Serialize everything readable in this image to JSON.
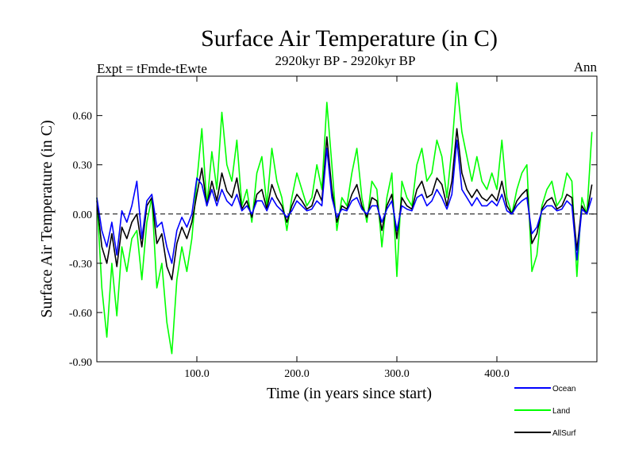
{
  "chart_data": {
    "type": "line",
    "title": "Surface Air Temperature (in C)",
    "subtitle": "2920kyr BP - 2920kyr BP",
    "left_label": "Expt = tFmde-tEwte",
    "right_label": "Ann",
    "xlabel": "Time (in years since start)",
    "ylabel": "Surface Air Temperature (in C)",
    "xlim": [
      0,
      500
    ],
    "ylim": [
      -0.9,
      0.84
    ],
    "x_ticks": [
      100,
      200,
      300,
      400
    ],
    "x_tick_labels": [
      "100.0",
      "200.0",
      "300.0",
      "400.0"
    ],
    "y_ticks": [
      -0.9,
      -0.6,
      -0.3,
      0.0,
      0.3,
      0.6
    ],
    "y_tick_labels": [
      "-0.90",
      "-0.60",
      "-0.30",
      "0.00",
      "0.30",
      "0.60"
    ],
    "zero_line": true,
    "x_step": 5,
    "series": [
      {
        "name": "Land",
        "color": "#00ff00",
        "values": [
          0.1,
          -0.45,
          -0.75,
          -0.3,
          -0.62,
          -0.2,
          -0.35,
          -0.15,
          -0.1,
          -0.4,
          -0.05,
          0.1,
          -0.45,
          -0.3,
          -0.66,
          -0.85,
          -0.4,
          -0.2,
          -0.35,
          -0.15,
          0.2,
          0.52,
          0.05,
          0.38,
          0.15,
          0.62,
          0.3,
          0.2,
          0.45,
          0.05,
          0.15,
          -0.05,
          0.25,
          0.35,
          0.05,
          0.4,
          0.2,
          0.1,
          -0.1,
          0.1,
          0.25,
          0.15,
          0.05,
          0.1,
          0.3,
          0.15,
          0.68,
          0.3,
          -0.1,
          0.1,
          0.05,
          0.25,
          0.4,
          0.1,
          -0.05,
          0.2,
          0.15,
          -0.2,
          0.1,
          0.25,
          -0.38,
          0.2,
          0.1,
          0.05,
          0.3,
          0.4,
          0.2,
          0.25,
          0.45,
          0.35,
          0.1,
          0.4,
          0.8,
          0.5,
          0.35,
          0.2,
          0.35,
          0.2,
          0.15,
          0.25,
          0.15,
          0.45,
          0.1,
          0.0,
          0.15,
          0.25,
          0.3,
          -0.35,
          -0.25,
          0.05,
          0.15,
          0.2,
          0.05,
          0.1,
          0.25,
          0.2,
          -0.38,
          0.1,
          0.0,
          0.5
        ]
      },
      {
        "name": "AllSurf",
        "color": "#000000",
        "values": [
          0.08,
          -0.2,
          -0.3,
          -0.12,
          -0.32,
          -0.08,
          -0.15,
          -0.05,
          0.0,
          -0.2,
          0.05,
          0.1,
          -0.18,
          -0.12,
          -0.32,
          -0.4,
          -0.18,
          -0.08,
          -0.15,
          -0.05,
          0.12,
          0.28,
          0.05,
          0.2,
          0.08,
          0.25,
          0.14,
          0.1,
          0.22,
          0.03,
          0.08,
          -0.02,
          0.12,
          0.15,
          0.03,
          0.18,
          0.1,
          0.05,
          -0.05,
          0.05,
          0.12,
          0.08,
          0.03,
          0.05,
          0.15,
          0.08,
          0.47,
          0.15,
          -0.05,
          0.05,
          0.03,
          0.12,
          0.18,
          0.05,
          -0.02,
          0.1,
          0.08,
          -0.1,
          0.05,
          0.12,
          -0.15,
          0.1,
          0.05,
          0.03,
          0.15,
          0.2,
          0.1,
          0.12,
          0.22,
          0.18,
          0.05,
          0.2,
          0.52,
          0.25,
          0.15,
          0.1,
          0.15,
          0.1,
          0.08,
          0.12,
          0.08,
          0.2,
          0.05,
          0.0,
          0.08,
          0.12,
          0.15,
          -0.18,
          -0.12,
          0.03,
          0.08,
          0.1,
          0.03,
          0.05,
          0.12,
          0.1,
          -0.22,
          0.05,
          0.0,
          0.18
        ]
      },
      {
        "name": "Ocean",
        "color": "#0000ff",
        "values": [
          0.1,
          -0.1,
          -0.2,
          -0.05,
          -0.25,
          0.02,
          -0.05,
          0.05,
          0.2,
          -0.15,
          0.08,
          0.12,
          -0.08,
          -0.05,
          -0.2,
          -0.3,
          -0.1,
          -0.02,
          -0.08,
          0.0,
          0.22,
          0.18,
          0.05,
          0.15,
          0.05,
          0.15,
          0.08,
          0.05,
          0.12,
          0.02,
          0.05,
          0.0,
          0.08,
          0.08,
          0.02,
          0.1,
          0.05,
          0.02,
          -0.02,
          0.02,
          0.08,
          0.05,
          0.02,
          0.03,
          0.08,
          0.05,
          0.4,
          0.1,
          -0.02,
          0.03,
          0.02,
          0.08,
          0.1,
          0.03,
          0.0,
          0.05,
          0.05,
          -0.05,
          0.03,
          0.08,
          -0.1,
          0.05,
          0.03,
          0.02,
          0.1,
          0.12,
          0.05,
          0.08,
          0.15,
          0.1,
          0.03,
          0.12,
          0.45,
          0.15,
          0.1,
          0.05,
          0.1,
          0.05,
          0.05,
          0.08,
          0.05,
          0.12,
          0.02,
          0.0,
          0.05,
          0.08,
          0.1,
          -0.12,
          -0.08,
          0.02,
          0.05,
          0.05,
          0.02,
          0.03,
          0.08,
          0.05,
          -0.28,
          0.03,
          0.0,
          0.1
        ]
      }
    ],
    "legend": [
      {
        "name": "Ocean",
        "color": "#0000ff"
      },
      {
        "name": "Land",
        "color": "#00ff00"
      },
      {
        "name": "AllSurf",
        "color": "#000000"
      }
    ],
    "legend_position": "bottom-right"
  }
}
